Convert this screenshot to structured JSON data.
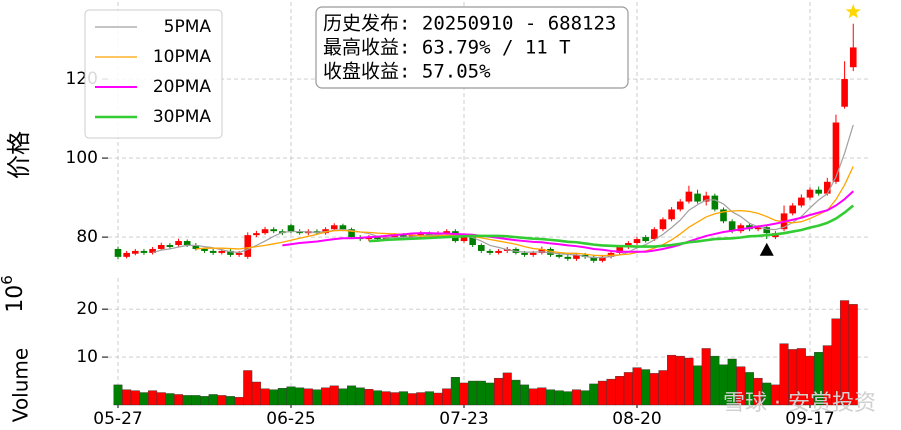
{
  "chart_data": {
    "type": "candlestick",
    "y_label": "价格",
    "annotation": [
      "历史发布: 20250910 - 688123",
      "最高收益: 63.79% / 11 T",
      "收盘收益: 57.05%"
    ],
    "watermark": "雪球 · 安赏投资",
    "categories": [
      "05-27",
      null,
      null,
      null,
      null,
      null,
      null,
      null,
      null,
      null,
      null,
      null,
      null,
      null,
      null,
      null,
      null,
      null,
      null,
      null,
      "06-25",
      null,
      null,
      null,
      null,
      null,
      null,
      null,
      null,
      null,
      null,
      null,
      null,
      null,
      null,
      null,
      null,
      null,
      null,
      null,
      "07-23",
      null,
      null,
      null,
      null,
      null,
      null,
      null,
      null,
      null,
      null,
      null,
      null,
      null,
      null,
      null,
      null,
      null,
      null,
      null,
      "08-20",
      null,
      null,
      null,
      null,
      null,
      null,
      null,
      null,
      null,
      null,
      null,
      null,
      null,
      null,
      null,
      null,
      null,
      null,
      null,
      "09-17",
      null,
      null,
      null,
      null,
      null
    ],
    "open": [
      77,
      75,
      75.8,
      76.5,
      76,
      77,
      78,
      78,
      79,
      78,
      77,
      76.5,
      76,
      76.5,
      75.5,
      75,
      80.5,
      81,
      82,
      81.5,
      83,
      81.5,
      81,
      81.5,
      81,
      82,
      83,
      82,
      80,
      79.5,
      80,
      79.5,
      80,
      80.5,
      80,
      80.5,
      81,
      80.5,
      81,
      81.5,
      79,
      80,
      78,
      76.5,
      76,
      76.5,
      77,
      76,
      75.5,
      76,
      77,
      75.5,
      75,
      74.5,
      75.5,
      75,
      74,
      75,
      76,
      77.5,
      78.5,
      80,
      79.5,
      82,
      84.5,
      87,
      89,
      91,
      89,
      90.5,
      87,
      84,
      81.5,
      83,
      82,
      82.5,
      80,
      82,
      86,
      88,
      90,
      92,
      91,
      94,
      113,
      123
    ],
    "high": [
      77.6,
      76.5,
      77,
      77,
      77.5,
      78.6,
      78.5,
      79.6,
      79.4,
      78.5,
      77.4,
      77,
      77,
      77,
      76.5,
      81.2,
      81.6,
      82.6,
      82.5,
      82,
      83.4,
      82,
      82,
      82,
      82.5,
      83.5,
      83.4,
      82.4,
      80.5,
      80.5,
      80.4,
      80.5,
      81,
      81,
      81,
      81.5,
      81.4,
      81.5,
      82,
      82,
      80.5,
      80.4,
      78.4,
      77,
      77,
      77.5,
      77.4,
      76.5,
      76.5,
      77.6,
      77.4,
      76,
      75.5,
      76,
      76,
      75.4,
      75.5,
      76.5,
      78,
      79,
      80,
      80.5,
      82.5,
      85,
      87.6,
      89.6,
      93,
      92,
      91.5,
      91,
      87.5,
      84.5,
      83.5,
      83.5,
      83,
      83,
      81.5,
      88,
      88.6,
      90.8,
      92.6,
      92.8,
      95,
      111,
      124.5,
      134
    ],
    "low": [
      74.4,
      74.6,
      75.4,
      75.5,
      75.6,
      76.7,
      77,
      77.6,
      77.5,
      76.6,
      76,
      75.5,
      75.6,
      75,
      75,
      74.5,
      80,
      80.6,
      81,
      80.5,
      81,
      80.6,
      80.5,
      80.6,
      80.6,
      81.6,
      81.5,
      79.6,
      79,
      79,
      79,
      79,
      79.6,
      79.5,
      79.6,
      80,
      80,
      80,
      80.6,
      78.6,
      78.6,
      77.5,
      76,
      75.5,
      75.6,
      76,
      75.6,
      75,
      75,
      75.6,
      75,
      74.6,
      74,
      74,
      74.5,
      73.5,
      73.6,
      74.6,
      75.6,
      77,
      78,
      78.6,
      79,
      81.5,
      84,
      86.5,
      88.5,
      88.5,
      88,
      86.5,
      83.5,
      81,
      81,
      81.5,
      81.5,
      79.5,
      79.5,
      81.5,
      85.5,
      87.5,
      89.5,
      90.5,
      90.5,
      93.5,
      112.5,
      122
    ],
    "close": [
      75,
      76,
      76.5,
      76,
      77,
      78,
      77.5,
      79,
      78,
      77,
      76.5,
      76,
      76.5,
      75.5,
      76,
      80.5,
      81,
      82,
      81.5,
      81,
      81.5,
      81,
      81.5,
      81,
      82,
      83,
      82,
      80,
      79.5,
      80,
      79.5,
      80,
      80.5,
      80,
      80.5,
      81,
      80.5,
      81,
      81.5,
      79,
      80,
      78,
      76.5,
      76,
      76.5,
      77,
      76,
      75.5,
      76,
      77,
      75.5,
      75,
      74.5,
      75.5,
      75,
      74,
      75,
      76,
      77.5,
      78.5,
      79.5,
      79,
      82,
      84.5,
      87,
      89,
      91.5,
      89,
      90.5,
      87,
      84,
      81.5,
      83,
      82,
      82.5,
      81,
      81,
      86,
      88,
      90,
      92,
      91,
      94,
      109,
      120,
      128
    ],
    "up_color": "#ff0000",
    "down_color": "#008000",
    "ylim": [
      73.7,
      139.5
    ],
    "yticks": [
      80,
      100,
      120
    ],
    "grid": true,
    "legend": "upper left",
    "series": [
      {
        "name": "5PMA",
        "color": "#a0a0a0",
        "linewidth": 1.2,
        "values": [
          null,
          null,
          null,
          null,
          76.1,
          76.7,
          77,
          77.5,
          77.9,
          77.9,
          77.6,
          77.3,
          76.8,
          76.3,
          76.1,
          76.9,
          77.9,
          79,
          80.2,
          81.2,
          81.4,
          81.4,
          81.3,
          81.2,
          81.4,
          81.7,
          81.9,
          81.6,
          81.3,
          80.9,
          80.2,
          79.8,
          79.9,
          80,
          80.1,
          80.4,
          80.5,
          80.6,
          80.9,
          80.6,
          80.4,
          79.9,
          79,
          77.9,
          77.4,
          76.8,
          76.4,
          76.2,
          76.2,
          76.3,
          76,
          75.8,
          75.6,
          75.5,
          75.1,
          74.8,
          74.8,
          75.1,
          75.5,
          76.2,
          77.3,
          78.1,
          79.3,
          80.7,
          82.4,
          84.3,
          86.8,
          88.2,
          89.4,
          89.4,
          88.4,
          86.4,
          85.2,
          83.5,
          82.6,
          82,
          81.9,
          82.5,
          83.7,
          85.2,
          87.4,
          89.4,
          91,
          95.2,
          101.2,
          108.4
        ]
      },
      {
        "name": "10PMA",
        "color": "#ffa500",
        "linewidth": 1.3,
        "values": [
          null,
          null,
          null,
          null,
          null,
          null,
          null,
          null,
          null,
          77,
          77.2,
          77.2,
          77.2,
          77.1,
          77,
          77.3,
          77.6,
          77.9,
          78.3,
          78.7,
          79.2,
          79.7,
          80.2,
          80.7,
          81.3,
          81.6,
          81.7,
          81.5,
          81.3,
          81.2,
          81,
          80.9,
          80.8,
          80.7,
          80.5,
          80.3,
          80.2,
          80.3,
          80.5,
          80.4,
          80.4,
          80.2,
          79.8,
          79.4,
          79,
          78.6,
          78.2,
          77.6,
          77.1,
          76.9,
          76.4,
          76.1,
          75.9,
          75.9,
          75.7,
          75.4,
          75.3,
          75.4,
          75.5,
          75.7,
          76.1,
          76.5,
          77.2,
          78.1,
          79.3,
          80.8,
          82.5,
          83.8,
          85.1,
          85.9,
          86.4,
          86.6,
          86.7,
          86.5,
          86,
          85.2,
          84.2,
          83.9,
          83.6,
          83.9,
          84.7,
          85.7,
          86.8,
          89.5,
          93.2,
          97.9
        ]
      },
      {
        "name": "20PMA",
        "color": "#ff00ff",
        "linewidth": 2,
        "values": [
          null,
          null,
          null,
          null,
          null,
          null,
          null,
          null,
          null,
          null,
          null,
          null,
          null,
          null,
          null,
          null,
          null,
          null,
          null,
          77.9,
          78.2,
          78.5,
          78.7,
          78.9,
          79.2,
          79.5,
          79.7,
          79.7,
          79.8,
          80,
          80.1,
          80.3,
          80.5,
          80.7,
          80.9,
          81,
          81,
          80.9,
          80.9,
          80.8,
          80.7,
          80.6,
          80.3,
          80.1,
          79.8,
          79.5,
          79.2,
          79,
          78.8,
          78.7,
          78.4,
          78.2,
          77.9,
          77.7,
          77.4,
          77,
          76.8,
          76.5,
          76.3,
          76.3,
          76.3,
          76.3,
          76.6,
          77,
          77.5,
          78.1,
          78.9,
          79.6,
          80.3,
          80.8,
          81.3,
          81.6,
          82,
          82.3,
          82.7,
          83,
          83.4,
          83.9,
          84.4,
          84.9,
          85.6,
          86.2,
          86.8,
          88,
          89.6,
          91.6
        ]
      },
      {
        "name": "30PMA",
        "color": "#33cc33",
        "linewidth": 2.6,
        "values": [
          null,
          null,
          null,
          null,
          null,
          null,
          null,
          null,
          null,
          null,
          null,
          null,
          null,
          null,
          null,
          null,
          null,
          null,
          null,
          null,
          null,
          null,
          null,
          null,
          null,
          null,
          null,
          null,
          null,
          79,
          79.1,
          79.3,
          79.4,
          79.5,
          79.6,
          79.7,
          79.8,
          79.9,
          80,
          80.1,
          80.2,
          80.3,
          80.3,
          80.3,
          80.3,
          80.2,
          80,
          79.8,
          79.6,
          79.5,
          79.3,
          79.1,
          78.8,
          78.7,
          78.4,
          78.1,
          77.9,
          77.8,
          77.7,
          77.7,
          77.6,
          77.6,
          77.6,
          77.8,
          78,
          78.3,
          78.7,
          78.9,
          79.2,
          79.5,
          79.6,
          79.7,
          79.9,
          80.2,
          80.3,
          80.5,
          80.7,
          81,
          81.4,
          81.8,
          82.4,
          82.9,
          83.6,
          84.7,
          86.2,
          88
        ]
      }
    ],
    "markers": [
      {
        "index": 75,
        "value": 76.8,
        "marker": "triangle",
        "color": "#000000"
      },
      {
        "index": 85,
        "value": 137,
        "marker": "star",
        "color": "#ffd700"
      }
    ],
    "volume": {
      "label": "Volume",
      "offset_base": "10",
      "offset_exponent": "6",
      "ylim": [
        0,
        26.5
      ],
      "yticks": [
        10,
        20
      ],
      "values": [
        4.2,
        3.2,
        3,
        2.6,
        3,
        2.6,
        2.4,
        2.2,
        2,
        2,
        1.8,
        2.2,
        2,
        1.8,
        1.6,
        7.2,
        4.8,
        3.4,
        3.2,
        3.5,
        3.8,
        3.6,
        3.4,
        3.2,
        3.6,
        4,
        3.4,
        4,
        3.6,
        3.3,
        3,
        2.8,
        2.6,
        2.8,
        2.4,
        2.6,
        2.8,
        2.5,
        3.4,
        5.8,
        4.6,
        5,
        5,
        4.6,
        5.6,
        6.7,
        5.2,
        4.2,
        3.4,
        3.6,
        3.2,
        3,
        2.8,
        3.2,
        3,
        4.4,
        5,
        5.4,
        6,
        6.8,
        7.8,
        7.4,
        6.6,
        7.2,
        10.4,
        10.2,
        9.8,
        8.2,
        11.8,
        10.2,
        8.4,
        9.6,
        8,
        6.8,
        5.6,
        4.6,
        4.2,
        12.8,
        11.6,
        11.8,
        10.2,
        11,
        12.4,
        18,
        21.8,
        21
      ]
    }
  }
}
